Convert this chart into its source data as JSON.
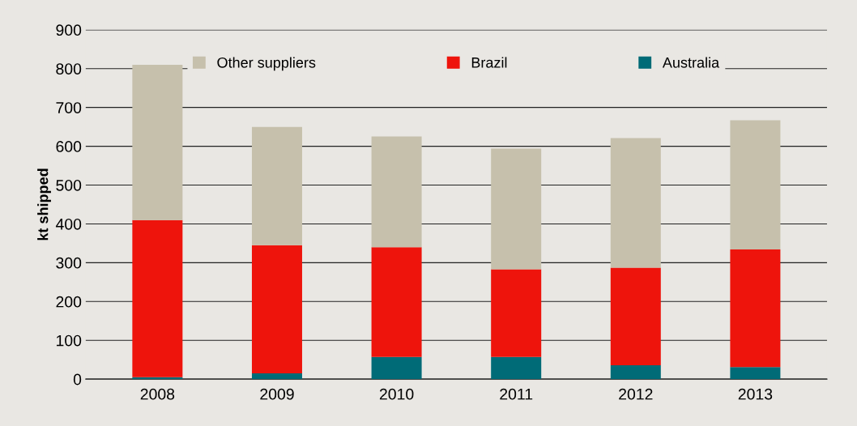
{
  "chart_data": {
    "type": "bar",
    "stacked": true,
    "ylabel": "kt shipped",
    "categories": [
      "2008",
      "2009",
      "2010",
      "2011",
      "2012",
      "2013"
    ],
    "series": [
      {
        "name": "Australia",
        "color": "#006b77",
        "values": [
          5,
          15,
          57,
          57,
          36,
          31
        ]
      },
      {
        "name": "Brazil",
        "color": "#ee140c",
        "values": [
          405,
          330,
          283,
          226,
          251,
          303
        ]
      },
      {
        "name": "Other suppliers",
        "color": "#c6c0ac",
        "values": [
          400,
          305,
          285,
          311,
          334,
          333
        ]
      }
    ],
    "ylim": [
      0,
      900
    ],
    "yticks": [
      0,
      100,
      200,
      300,
      400,
      500,
      600,
      700,
      800,
      900
    ],
    "grid": "y",
    "legend": "top"
  }
}
